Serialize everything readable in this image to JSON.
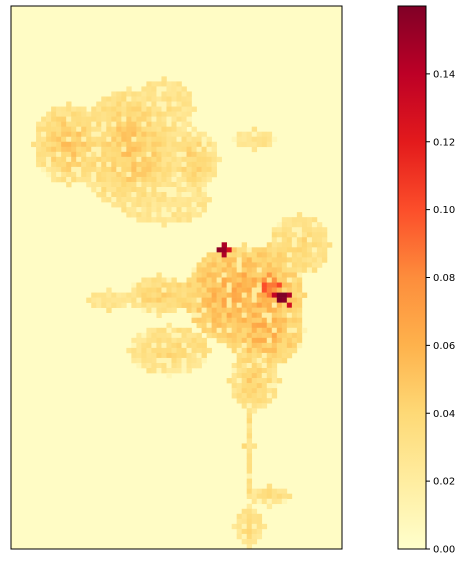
{
  "chart_data": {
    "type": "heatmap",
    "title": "",
    "xlabel": "",
    "ylabel": "",
    "colormap": "YlOrRd",
    "colorbar": {
      "min": 0.0,
      "max": 0.16,
      "ticks": [
        "0.00",
        "0.02",
        "0.04",
        "0.06",
        "0.08",
        "0.10",
        "0.12",
        "0.14"
      ]
    },
    "grid_size": [
      66,
      108
    ],
    "background_value": 0.003,
    "hotspots": [
      {
        "cx": 11,
        "cy": 27,
        "rx": 7,
        "ry": 8,
        "v": 0.05
      },
      {
        "cx": 23,
        "cy": 28,
        "rx": 10,
        "ry": 12,
        "v": 0.05
      },
      {
        "cx": 30,
        "cy": 20,
        "rx": 6,
        "ry": 6,
        "v": 0.035
      },
      {
        "cx": 36,
        "cy": 30,
        "rx": 5,
        "ry": 6,
        "v": 0.045
      },
      {
        "cx": 48,
        "cy": 26,
        "rx": 4,
        "ry": 2,
        "v": 0.03
      },
      {
        "cx": 30,
        "cy": 38,
        "rx": 9,
        "ry": 5,
        "v": 0.03
      },
      {
        "cx": 46,
        "cy": 57,
        "rx": 12,
        "ry": 10,
        "v": 0.065
      },
      {
        "cx": 50,
        "cy": 64,
        "rx": 8,
        "ry": 7,
        "v": 0.06
      },
      {
        "cx": 57,
        "cy": 47,
        "rx": 6,
        "ry": 6,
        "v": 0.04
      },
      {
        "cx": 29,
        "cy": 57,
        "rx": 6,
        "ry": 4,
        "v": 0.045
      },
      {
        "cx": 31,
        "cy": 68,
        "rx": 8,
        "ry": 5,
        "v": 0.04
      },
      {
        "cx": 48,
        "cy": 74,
        "rx": 5,
        "ry": 6,
        "v": 0.045
      },
      {
        "cx": 19,
        "cy": 58,
        "rx": 4,
        "ry": 2,
        "v": 0.025
      },
      {
        "cx": 47,
        "cy": 87,
        "rx": 1,
        "ry": 10,
        "v": 0.035
      },
      {
        "cx": 51,
        "cy": 97,
        "rx": 4,
        "ry": 2,
        "v": 0.04
      },
      {
        "cx": 47,
        "cy": 103,
        "rx": 3,
        "ry": 4,
        "v": 0.04
      },
      {
        "cx": 42,
        "cy": 48,
        "rx": 1,
        "ry": 1,
        "v": 0.14
      },
      {
        "cx": 53,
        "cy": 57,
        "rx": 1,
        "ry": 1,
        "v": 0.16
      },
      {
        "cx": 55,
        "cy": 58,
        "rx": 1,
        "ry": 1,
        "v": 0.14
      },
      {
        "cx": 51,
        "cy": 55,
        "rx": 2,
        "ry": 2,
        "v": 0.09
      }
    ]
  }
}
